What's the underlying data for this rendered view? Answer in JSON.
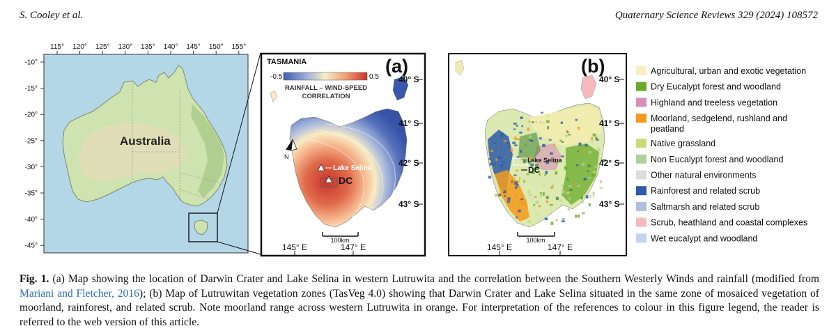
{
  "header": {
    "authors": "S. Cooley et al.",
    "journal": "Quaternary Science Reviews 329 (2024) 108572"
  },
  "map_australia": {
    "lon_ticks": [
      "115°",
      "120°",
      "125°",
      "130°",
      "135°",
      "140°",
      "145°",
      "150°",
      "155°"
    ],
    "lat_ticks": [
      "-10°",
      "-15°",
      "-20°",
      "-25°",
      "-30°",
      "-35°",
      "-40°",
      "-45°"
    ],
    "label": "Australia",
    "colors": {
      "ocean": "#b4d7e8",
      "land": "#cfe3b0",
      "land_dark": "#b8d193",
      "land_dry": "#e4dcb9"
    }
  },
  "panel_a": {
    "letter": "(a)",
    "title": "TASMANIA",
    "scale_min": "-0.5",
    "scale_max": "0.5",
    "scale_title_1": "RAINFALL – WIND-SPEED",
    "scale_title_2": "CORRELATION",
    "north": "N",
    "site_1": "Lake Selina",
    "site_2": "DC",
    "lat_labels": [
      "40° S",
      "41° S",
      "42° S",
      "43° S"
    ],
    "lon_labels": [
      "145° E",
      "147° E"
    ],
    "scale_bar": "100km"
  },
  "panel_b": {
    "letter": "(b)",
    "site_1": "Lake Selina",
    "site_2": "DC",
    "lat_labels": [
      "40° S",
      "41° S",
      "42° S",
      "43° S"
    ],
    "lon_labels": [
      "145° E",
      "147° E"
    ],
    "scale_bar": "100km"
  },
  "legend": [
    {
      "label": "Agricultural, urban and exotic vegetation",
      "color": "#f8f0c0"
    },
    {
      "label": "Dry Eucalypt forest and woodland",
      "color": "#6aaa2a"
    },
    {
      "label": "Highland and treeless vegetation",
      "color": "#d98fb8"
    },
    {
      "label": "Moorland, sedgelend, rushland and",
      "label2": "peatland",
      "color": "#f59a1c"
    },
    {
      "label": "Native grassland",
      "color": "#c7dc78"
    },
    {
      "label": "Non Eucalypt forest and woodland",
      "color": "#b0d29a"
    },
    {
      "label": "Other natural environments",
      "color": "#dcdcdc"
    },
    {
      "label": "Rainforest and related scrub",
      "color": "#2e5aa6"
    },
    {
      "label": "Saltmarsh and related scrub",
      "color": "#b2bde0"
    },
    {
      "label": "Scrub, heathland and coastal complexes",
      "color": "#f6b9bc"
    },
    {
      "label": "Wet eucalypt and woodland",
      "color": "#c4d4ef"
    }
  ],
  "caption": {
    "fig_label": "Fig. 1.",
    "text_1": " (a) Map showing the location of Darwin Crater and Lake Selina in western Lutruwita and the correlation between the Southern Westerly Winds and rainfall (modified from ",
    "ref": "Mariani and Fletcher, 2016",
    "text_2": "); (b) Map of Lutruwitan vegetation zones (TasVeg 4.0) showing that Darwin Crater and Lake Selina situated in the same zone of mosaiced vegetation of moorland, rainforest, and related scrub. Note moorland range across western Lutruwita in orange. For interpretation of the references to colour in this figure legend, the reader is referred to the web version of this article."
  }
}
